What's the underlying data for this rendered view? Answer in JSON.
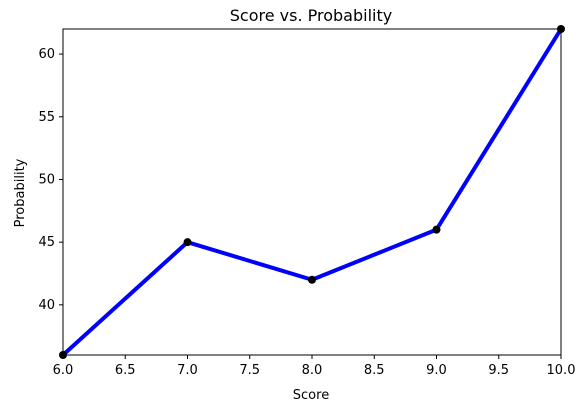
{
  "chart_data": {
    "type": "line",
    "title": "Score vs. Probability",
    "xlabel": "Score",
    "ylabel": "Probability",
    "x": [
      6.0,
      7.0,
      8.0,
      9.0,
      10.0
    ],
    "series": [
      {
        "values": [
          36,
          45,
          42,
          46,
          62
        ],
        "color": "#0000ff",
        "marker_color": "#000000"
      }
    ],
    "xlim": [
      6.0,
      10.0
    ],
    "ylim": [
      36,
      62
    ],
    "xticks": [
      "6.0",
      "6.5",
      "7.0",
      "7.5",
      "8.0",
      "8.5",
      "9.0",
      "9.5",
      "10.0"
    ],
    "yticks": [
      "40",
      "45",
      "50",
      "55",
      "60"
    ],
    "grid": false,
    "legend": "none"
  }
}
